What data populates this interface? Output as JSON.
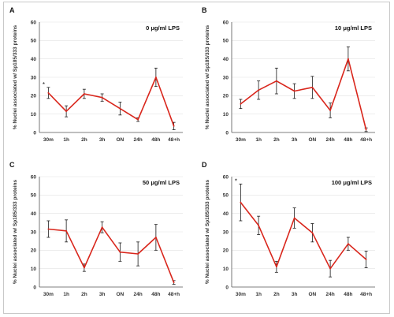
{
  "chart_data": [
    {
      "type": "line",
      "panel_letter": "A",
      "title": "0 μg/ml LPS",
      "ylabel": "% Nuclei associated w/ Sp185/333 proteins",
      "categories": [
        "30m",
        "1h",
        "2h",
        "3h",
        "ON",
        "24h",
        "48h",
        "48+h"
      ],
      "yticks": [
        "0",
        "10",
        "20",
        "30",
        "40",
        "50",
        "60"
      ],
      "ylim": [
        0,
        60
      ],
      "grid": true,
      "values": [
        21.5,
        11.5,
        21,
        19,
        13,
        7,
        30,
        3.5
      ],
      "err": [
        3,
        3,
        2.5,
        2,
        3.5,
        1,
        5,
        2
      ],
      "significance": [
        "*",
        "",
        "",
        "",
        "",
        "",
        "",
        ""
      ]
    },
    {
      "type": "line",
      "panel_letter": "B",
      "title": "10 μg/ml LPS",
      "ylabel": "% Nuclei associated w/ Sp185/333 proteins",
      "categories": [
        "30m",
        "1h",
        "2h",
        "3h",
        "ON",
        "24h",
        "48h",
        "48+h"
      ],
      "yticks": [
        "0",
        "10",
        "20",
        "30",
        "40",
        "50",
        "60"
      ],
      "ylim": [
        0,
        60
      ],
      "grid": true,
      "values": [
        15.5,
        23,
        28,
        22.5,
        24.5,
        12,
        40,
        1.5
      ],
      "err": [
        2.5,
        5,
        7,
        4,
        6,
        4,
        6.5,
        1
      ],
      "significance": [
        "",
        "",
        "",
        "",
        "",
        "",
        "",
        ""
      ]
    },
    {
      "type": "line",
      "panel_letter": "C",
      "title": "50 μg/ml LPS",
      "ylabel": "% Nuclei associated w/ Sp185/333 proteins",
      "categories": [
        "30m",
        "1h",
        "2h",
        "3h",
        "ON",
        "24h",
        "48h",
        "48+h"
      ],
      "yticks": [
        "0",
        "10",
        "20",
        "30",
        "40",
        "50",
        "60"
      ],
      "ylim": [
        0,
        60
      ],
      "grid": true,
      "values": [
        31.5,
        30.5,
        10.5,
        32.5,
        19,
        18,
        27,
        2.5
      ],
      "err": [
        4.5,
        6,
        2,
        3,
        5,
        6.5,
        7,
        1
      ],
      "significance": [
        "",
        "",
        "",
        "",
        "",
        "",
        "",
        ""
      ]
    },
    {
      "type": "line",
      "panel_letter": "D",
      "title": "100 μg/ml LPS",
      "ylabel": "% Nuclei associated w/ Sp185/333 proteins",
      "categories": [
        "30m",
        "1h",
        "2h",
        "3h",
        "ON",
        "24h",
        "48h",
        "48+h"
      ],
      "yticks": [
        "0",
        "10",
        "20",
        "30",
        "40",
        "50",
        "60"
      ],
      "ylim": [
        0,
        60
      ],
      "grid": true,
      "values": [
        46,
        33.5,
        11,
        37.5,
        29.5,
        10,
        23.5,
        15
      ],
      "err": [
        10,
        5,
        3,
        5.5,
        5,
        4.5,
        3.5,
        4.5
      ],
      "significance": [
        "*",
        "",
        "",
        "",
        "",
        "",
        "",
        ""
      ]
    }
  ]
}
